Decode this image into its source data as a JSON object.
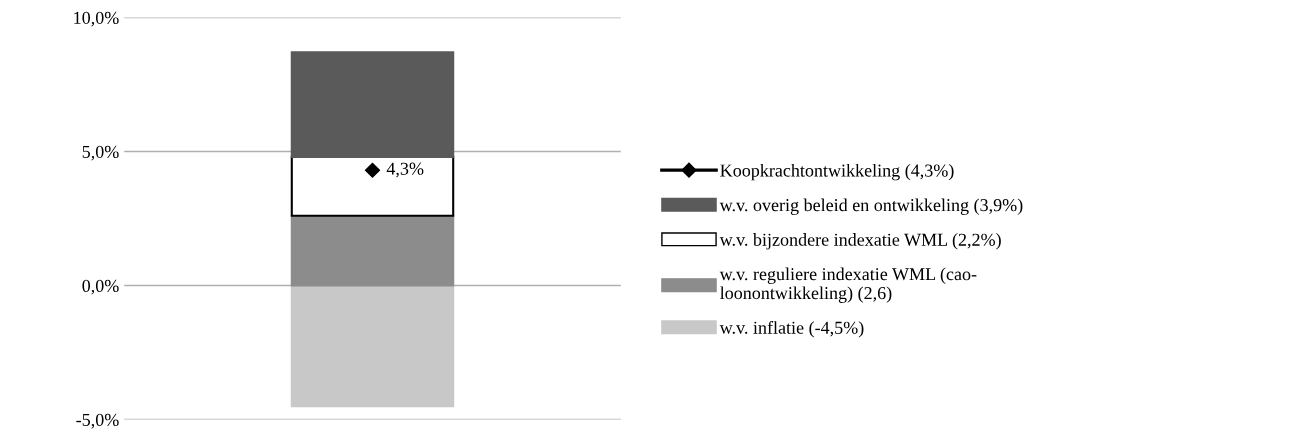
{
  "chart_data": {
    "type": "bar",
    "stacked": true,
    "categories": [
      null
    ],
    "series": [
      {
        "name": "w.v. inflatie (-4,5%)",
        "color": "#c8c8c8",
        "values": [
          -4.5
        ]
      },
      {
        "name": "w.v. reguliere indexatie WML (cao-\nloonontwikkeling) (2,6)",
        "color": "#8c8c8c",
        "values": [
          2.6
        ]
      },
      {
        "name": "w.v. bijzondere indexatie WML (2,2%)",
        "color": "#ffffff",
        "values": [
          2.2
        ]
      },
      {
        "name": "w.v. overig beleid en ontwikkeling (3,9%)",
        "color": "#5a5a5a",
        "values": [
          3.9
        ]
      },
      {
        "name": "Koopkrachtontwikkeling (4,3%)",
        "type": "line",
        "color": "#000000",
        "marker": "diamond",
        "values": [
          4.3
        ],
        "value_labels": [
          "4,3%"
        ]
      }
    ],
    "ylim": [
      -5,
      10
    ],
    "yticks": [
      {
        "value": -5,
        "label": "-5,0%"
      },
      {
        "value": 0,
        "label": "0,0%"
      },
      {
        "value": 5,
        "label": "5,0%"
      },
      {
        "value": 10,
        "label": "10,0%"
      }
    ],
    "grid": "y",
    "legend": "right"
  }
}
